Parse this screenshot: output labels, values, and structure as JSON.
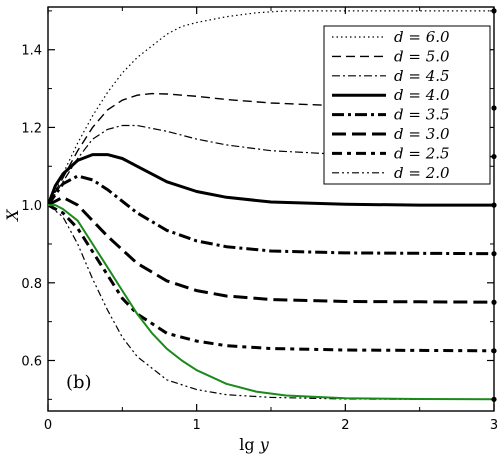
{
  "chart_data": {
    "type": "line",
    "title": "",
    "panel_label": "(b)",
    "xlabel": "lg",
    "xlabel_var": "y",
    "ylabel": "X",
    "xlim": [
      0,
      3
    ],
    "ylim": [
      0.47,
      1.51
    ],
    "xticks": [
      0,
      1,
      2,
      3
    ],
    "yticks": [
      0.6,
      0.8,
      1.0,
      1.2,
      1.4
    ],
    "ytick_labels": [
      "0.6",
      "0.8",
      "1.0",
      "1.2",
      "1.4"
    ],
    "legend_position": "top-right",
    "series": [
      {
        "name": "d = 6.0",
        "style": "dotted",
        "asymptote": 1.5,
        "color": "#000000",
        "x": [
          0,
          0.1,
          0.2,
          0.3,
          0.4,
          0.5,
          0.6,
          0.7,
          0.8,
          0.9,
          1.0,
          1.2,
          1.4,
          1.6,
          2.0,
          2.5,
          3.0
        ],
        "y": [
          1.0,
          1.08,
          1.16,
          1.23,
          1.29,
          1.34,
          1.38,
          1.41,
          1.44,
          1.46,
          1.47,
          1.485,
          1.495,
          1.5,
          1.5,
          1.5,
          1.5
        ]
      },
      {
        "name": "d = 5.0",
        "style": "dashed",
        "asymptote": 1.25,
        "color": "#000000",
        "x": [
          0,
          0.1,
          0.2,
          0.3,
          0.4,
          0.5,
          0.6,
          0.7,
          0.8,
          1.0,
          1.2,
          1.5,
          2.0,
          2.5,
          3.0
        ],
        "y": [
          1.0,
          1.07,
          1.14,
          1.2,
          1.245,
          1.27,
          1.283,
          1.287,
          1.286,
          1.28,
          1.272,
          1.263,
          1.255,
          1.252,
          1.25
        ]
      },
      {
        "name": "d = 4.5",
        "style": "dash-dot",
        "asymptote": 1.125,
        "color": "#000000",
        "x": [
          0,
          0.1,
          0.2,
          0.3,
          0.4,
          0.5,
          0.6,
          0.8,
          1.0,
          1.2,
          1.5,
          2.0,
          2.5,
          3.0
        ],
        "y": [
          1.0,
          1.06,
          1.12,
          1.17,
          1.195,
          1.205,
          1.205,
          1.19,
          1.17,
          1.155,
          1.14,
          1.13,
          1.127,
          1.125
        ]
      },
      {
        "name": "d = 4.0",
        "style": "solid-thick",
        "asymptote": 1.0,
        "color": "#000000",
        "x": [
          0,
          0.05,
          0.1,
          0.2,
          0.3,
          0.4,
          0.5,
          0.6,
          0.8,
          1.0,
          1.2,
          1.5,
          2.0,
          2.5,
          3.0
        ],
        "y": [
          1.0,
          1.05,
          1.08,
          1.115,
          1.13,
          1.13,
          1.12,
          1.1,
          1.06,
          1.035,
          1.02,
          1.008,
          1.002,
          1.0,
          1.0
        ]
      },
      {
        "name": "d = 3.5",
        "style": "dash-dot-thick",
        "asymptote": 0.875,
        "color": "#000000",
        "x": [
          0,
          0.1,
          0.2,
          0.3,
          0.4,
          0.6,
          0.8,
          1.0,
          1.2,
          1.5,
          2.0,
          2.5,
          3.0
        ],
        "y": [
          1.0,
          1.055,
          1.075,
          1.065,
          1.04,
          0.98,
          0.935,
          0.908,
          0.893,
          0.882,
          0.877,
          0.876,
          0.875
        ]
      },
      {
        "name": "d = 3.0",
        "style": "long-dash-thick",
        "asymptote": 0.75,
        "color": "#000000",
        "x": [
          0,
          0.1,
          0.2,
          0.3,
          0.4,
          0.6,
          0.8,
          1.0,
          1.2,
          1.5,
          2.0,
          2.5,
          3.0
        ],
        "y": [
          1.0,
          1.02,
          1.0,
          0.96,
          0.92,
          0.85,
          0.805,
          0.78,
          0.766,
          0.757,
          0.752,
          0.751,
          0.75
        ]
      },
      {
        "name": "d = 2.5",
        "style": "dash-dot-thick2",
        "asymptote": 0.625,
        "color": "#000000",
        "x": [
          0,
          0.1,
          0.2,
          0.3,
          0.4,
          0.5,
          0.6,
          0.8,
          1.0,
          1.2,
          1.5,
          2.0,
          2.5,
          3.0
        ],
        "y": [
          1.0,
          0.98,
          0.94,
          0.88,
          0.82,
          0.76,
          0.72,
          0.67,
          0.65,
          0.638,
          0.631,
          0.627,
          0.626,
          0.625
        ]
      },
      {
        "name": "d = 2.0",
        "style": "dash-dot-dot",
        "asymptote": 0.5,
        "color": "#000000",
        "x": [
          0,
          0.1,
          0.2,
          0.3,
          0.4,
          0.5,
          0.6,
          0.8,
          1.0,
          1.2,
          1.5,
          2.0,
          2.5,
          3.0
        ],
        "y": [
          1.0,
          0.97,
          0.9,
          0.81,
          0.73,
          0.66,
          0.61,
          0.55,
          0.525,
          0.512,
          0.505,
          0.501,
          0.5,
          0.5
        ]
      },
      {
        "name": "",
        "style": "solid-green",
        "color": "#1a8a1a",
        "x": [
          0,
          0.05,
          0.1,
          0.2,
          0.3,
          0.4,
          0.5,
          0.6,
          0.7,
          0.8,
          0.9,
          1.0,
          1.2,
          1.4,
          1.6,
          2.0,
          2.5,
          3.0
        ],
        "y": [
          1.0,
          1.0,
          0.99,
          0.96,
          0.9,
          0.84,
          0.78,
          0.72,
          0.67,
          0.63,
          0.6,
          0.575,
          0.54,
          0.52,
          0.51,
          0.503,
          0.501,
          0.5
        ]
      }
    ],
    "legend_entries": [
      "d = 6.0",
      "d = 5.0",
      "d = 4.5",
      "d = 4.0",
      "d = 3.5",
      "d = 3.0",
      "d = 2.5",
      "d = 2.0"
    ]
  }
}
